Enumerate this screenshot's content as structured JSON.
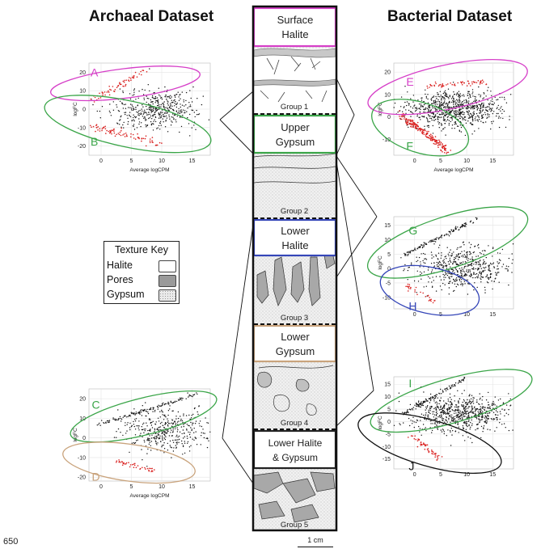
{
  "titles": {
    "archaeal": "Archaeal Dataset",
    "bacterial": "Bacterial Dataset"
  },
  "page_number": "650",
  "scale_label": "1 cm",
  "colors": {
    "magenta": "#d63fc8",
    "green": "#3aa548",
    "blue": "#3546b8",
    "tan": "#c9a37c",
    "black": "#111111",
    "red": "#d9201f",
    "points": "#111111"
  },
  "column": {
    "layers": [
      {
        "name": "Surface Halite",
        "lines": [
          "Surface",
          "Halite"
        ],
        "color": "#d63fc8"
      },
      {
        "name": "Upper Gypsum",
        "lines": [
          "Upper",
          "Gypsum"
        ],
        "color": "#3aa548"
      },
      {
        "name": "Lower Halite",
        "lines": [
          "Lower",
          "Halite"
        ],
        "color": "#3546b8"
      },
      {
        "name": "Lower Gypsum",
        "lines": [
          "Lower",
          "Gypsum"
        ],
        "color": "#c9a37c"
      },
      {
        "name": "Lower Halite & Gypsum",
        "lines": [
          "Lower Halite",
          "& Gypsum"
        ],
        "color": "#222222"
      }
    ],
    "groups": [
      "Group 1",
      "Group 2",
      "Group 3",
      "Group 4",
      "Group 5"
    ]
  },
  "texture_key": {
    "title": "Texture Key",
    "items": [
      {
        "label": "Halite",
        "swatch": "white"
      },
      {
        "label": "Pores",
        "swatch": "gray"
      },
      {
        "label": "Gypsum",
        "swatch": "stipple"
      }
    ]
  },
  "chart_data": [
    {
      "type": "scatter",
      "panel": "archaeal-top",
      "xlabel": "Average logCPM",
      "ylabel": "logFC",
      "xticks": [
        0,
        5,
        10,
        15
      ],
      "yticks": [
        20,
        10,
        0,
        -10,
        -20
      ],
      "xlim": [
        -2,
        18
      ],
      "ylim": [
        -25,
        25
      ],
      "ellipses": [
        {
          "label": "A",
          "color": "magenta"
        },
        {
          "label": "B",
          "color": "green"
        }
      ]
    },
    {
      "type": "scatter",
      "panel": "archaeal-bottom",
      "xlabel": "Average logCPM",
      "ylabel": "logFC",
      "xticks": [
        0,
        5,
        10,
        15
      ],
      "yticks": [
        20,
        10,
        0,
        -10,
        -20
      ],
      "xlim": [
        -2,
        18
      ],
      "ylim": [
        -22,
        25
      ],
      "ellipses": [
        {
          "label": "C",
          "color": "green"
        },
        {
          "label": "D",
          "color": "tan"
        }
      ]
    },
    {
      "type": "scatter",
      "panel": "bacterial-1",
      "xlabel": "Average logCPM",
      "ylabel": "logFC",
      "xticks": [
        0,
        5,
        10,
        15
      ],
      "yticks": [
        20,
        10,
        0,
        -10
      ],
      "xlim": [
        -4,
        19
      ],
      "ylim": [
        -17,
        24
      ],
      "ellipses": [
        {
          "label": "E",
          "color": "magenta"
        },
        {
          "label": "F",
          "color": "green"
        }
      ]
    },
    {
      "type": "scatter",
      "panel": "bacterial-2",
      "xlabel": "",
      "ylabel": "logFC",
      "xticks": [
        0,
        5,
        10,
        15
      ],
      "yticks": [
        15,
        10,
        5,
        0,
        -5,
        -10
      ],
      "xlim": [
        -4,
        19
      ],
      "ylim": [
        -14,
        18
      ],
      "ellipses": [
        {
          "label": "G",
          "color": "green"
        },
        {
          "label": "H",
          "color": "blue"
        }
      ]
    },
    {
      "type": "scatter",
      "panel": "bacterial-3",
      "xlabel": "",
      "ylabel": "logFC",
      "xticks": [
        0,
        5,
        10,
        15
      ],
      "yticks": [
        15,
        10,
        5,
        0,
        -5,
        -10,
        -15
      ],
      "xlim": [
        -4,
        19
      ],
      "ylim": [
        -19,
        18
      ],
      "ellipses": [
        {
          "label": "I",
          "color": "green"
        },
        {
          "label": "J",
          "color": "black"
        }
      ]
    }
  ]
}
